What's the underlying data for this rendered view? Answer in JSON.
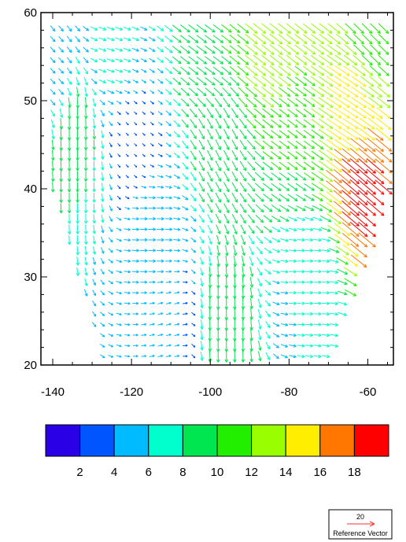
{
  "chart_data": {
    "type": "vector",
    "title": "",
    "xlabel": "",
    "ylabel": "",
    "xlim": [
      -143,
      -53.5
    ],
    "ylim": [
      20,
      60
    ],
    "x_ticks": [
      -140,
      -120,
      -100,
      -80,
      -60
    ],
    "x_tick_labels": [
      "-140",
      "-120",
      "-100",
      "-80",
      "-60"
    ],
    "y_ticks": [
      20,
      30,
      40,
      50,
      60
    ],
    "y_tick_labels": [
      "20",
      "30",
      "40",
      "50",
      "60"
    ],
    "grid": false,
    "vector_field_note": "wind vectors (u, v) sampled every ~2 deg; magnitudes read from colour bar",
    "vector_samples": [
      {
        "lon": -139,
        "lat": 52,
        "u": 4,
        "v": -4
      },
      {
        "lon": -135,
        "lat": 47,
        "u": 0,
        "v": -10
      },
      {
        "lon": -133,
        "lat": 42,
        "u": 0,
        "v": -8
      },
      {
        "lon": -125,
        "lat": 55,
        "u": 6,
        "v": -2
      },
      {
        "lon": -120,
        "lat": 45,
        "u": 2,
        "v": -2
      },
      {
        "lon": -115,
        "lat": 35,
        "u": 6,
        "v": 0
      },
      {
        "lon": -110,
        "lat": 25,
        "u": 4,
        "v": 1
      },
      {
        "lon": -100,
        "lat": 55,
        "u": 8,
        "v": -6
      },
      {
        "lon": -98,
        "lat": 45,
        "u": 4,
        "v": -8
      },
      {
        "lon": -97,
        "lat": 25,
        "u": 0,
        "v": -10
      },
      {
        "lon": -85,
        "lat": 55,
        "u": 10,
        "v": -8
      },
      {
        "lon": -80,
        "lat": 45,
        "u": 8,
        "v": -6
      },
      {
        "lon": -75,
        "lat": 30,
        "u": 6,
        "v": 0
      },
      {
        "lon": -65,
        "lat": 50,
        "u": 12,
        "v": -8
      },
      {
        "lon": -62,
        "lat": 40,
        "u": 14,
        "v": -12
      },
      {
        "lon": -60,
        "lat": 58,
        "u": 8,
        "v": -8
      }
    ],
    "colorbar": {
      "labels": [
        "2",
        "4",
        "6",
        "8",
        "10",
        "12",
        "14",
        "16",
        "18"
      ],
      "levels": [
        2,
        4,
        6,
        8,
        10,
        12,
        14,
        16,
        18
      ],
      "colors": [
        "#2a00e6",
        "#0055ff",
        "#00bbff",
        "#00ffcc",
        "#00e650",
        "#22ee00",
        "#99ff00",
        "#ffee00",
        "#ff7700",
        "#ff0000"
      ]
    },
    "reference_vector": {
      "magnitude": "20",
      "label": "Reference Vector",
      "color": "#ff3333"
    }
  }
}
